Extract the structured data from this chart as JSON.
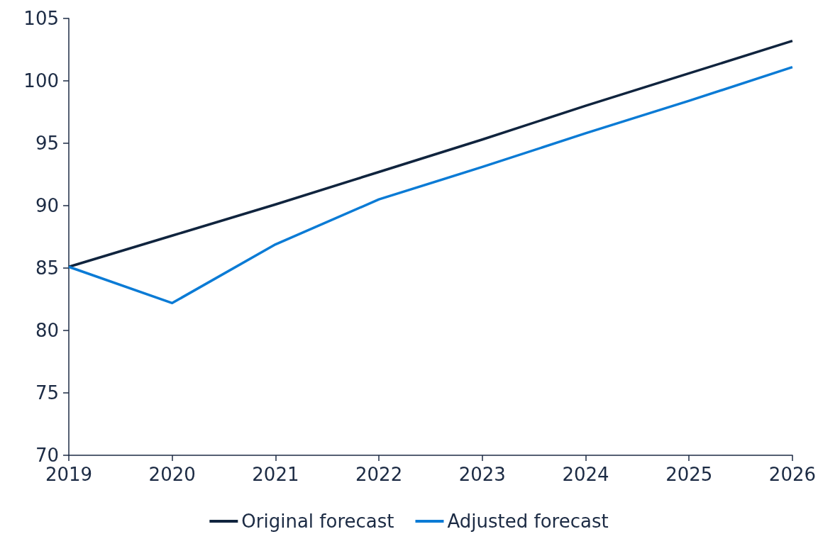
{
  "chart_data": {
    "type": "line",
    "categories": [
      "2019",
      "2020",
      "2021",
      "2022",
      "2023",
      "2024",
      "2025",
      "2026"
    ],
    "series": [
      {
        "name": "Original forecast",
        "color": "#10243e",
        "values": [
          85.1,
          87.6,
          90.1,
          92.7,
          95.3,
          98.0,
          100.6,
          103.2
        ]
      },
      {
        "name": "Adjusted forecast",
        "color": "#0b7bd5",
        "values": [
          85.1,
          82.2,
          86.9,
          90.5,
          93.1,
          95.8,
          98.4,
          101.1
        ]
      }
    ],
    "ylim": [
      70,
      105
    ],
    "yticks": [
      70,
      75,
      80,
      85,
      90,
      95,
      100,
      105
    ],
    "grid": false,
    "legend": "bottom",
    "marker": "none",
    "line_style": "solid"
  }
}
